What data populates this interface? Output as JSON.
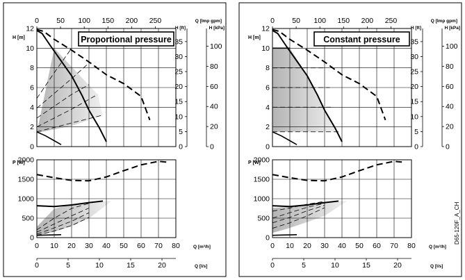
{
  "figure_code": "D65-120F_A_CH",
  "colors": {
    "line": "#000000",
    "grid": "#000000",
    "shade_light": "#f0f0f0",
    "shade_dark": "#b4b4b4",
    "frame": "#000000",
    "background": "#ffffff"
  },
  "chart_data": [
    {
      "type": "line",
      "panel": "Proportional pressure",
      "title": "Proportional pressure",
      "x_axis": {
        "label": "Q [m³/h]",
        "range": [
          0,
          80
        ],
        "ticks": [
          "0",
          "10",
          "20",
          "30",
          "40",
          "50",
          "60",
          "70",
          "80"
        ],
        "secondary_label": "Q [l/s]",
        "secondary_range": [
          0,
          22.22
        ],
        "secondary_ticks": [
          "0",
          "5",
          "10",
          "15",
          "20"
        ],
        "top_label": "Q [Imp gpm]",
        "top_range": [
          0,
          293.3
        ],
        "top_ticks": [
          "0",
          "50",
          "100",
          "150",
          "200",
          "250"
        ]
      },
      "head": {
        "ylabel": "H [m]",
        "ylim": [
          0,
          12
        ],
        "ticks": [
          "0",
          "2",
          "4",
          "6",
          "8",
          "10",
          "12"
        ],
        "secondary_label": "H [ft]",
        "secondary_ticks": [
          "0",
          "5",
          "10",
          "15",
          "20",
          "25",
          "30",
          "35"
        ],
        "tertiary_label": "H [kPa]",
        "tertiary_ticks": [
          "0",
          "20",
          "40",
          "60",
          "80",
          "100"
        ],
        "grid": true,
        "series": [
          {
            "style": "dashed-bold",
            "x": [
              0,
              4,
              10,
              20,
              30,
              40,
              50,
              60,
              65
            ],
            "y": [
              11.9,
              11.7,
              10.9,
              9.8,
              8.6,
              7.3,
              6.4,
              5.1,
              2.7
            ]
          },
          {
            "style": "solid-bold",
            "x": [
              0,
              3,
              8,
              14,
              20,
              26,
              30,
              36,
              40
            ],
            "y": [
              11.8,
              11.5,
              10.2,
              8.7,
              7.2,
              5.2,
              3.7,
              1.9,
              0.5
            ]
          },
          {
            "style": "solid",
            "x": [
              0,
              5,
              10,
              14
            ],
            "y": [
              1.5,
              1.1,
              0.6,
              0.2
            ]
          },
          {
            "style": "dashed",
            "x": [
              0,
              10,
              20
            ],
            "y": [
              4.9,
              7.5,
              10.0
            ]
          },
          {
            "style": "dashed",
            "x": [
              0,
              20,
              30
            ],
            "y": [
              3.9,
              6.9,
              8.5
            ]
          },
          {
            "style": "dashed",
            "x": [
              0,
              20,
              30
            ],
            "y": [
              2.9,
              5.3,
              6.3
            ]
          },
          {
            "style": "dashed",
            "x": [
              0,
              20,
              35
            ],
            "y": [
              2.0,
              3.8,
              5.3
            ]
          },
          {
            "style": "dashed",
            "x": [
              0,
              20,
              38
            ],
            "y": [
              1.5,
              2.4,
              3.2
            ]
          }
        ],
        "shaded_region": {
          "x": [
            0,
            10,
            35,
            38,
            30,
            20,
            0
          ],
          "y": [
            1.4,
            10.0,
            5.3,
            3.2,
            2.7,
            2.1,
            1.4
          ]
        }
      },
      "power": {
        "ylabel": "P [W]",
        "ylim": [
          0,
          2000
        ],
        "ticks": [
          "0",
          "500",
          "1000",
          "1500",
          "2000"
        ],
        "grid": true,
        "series": [
          {
            "style": "dashed-bold",
            "x": [
              0,
              10,
              20,
              30,
              40,
              50,
              60,
              70,
              75
            ],
            "y": [
              1620,
              1540,
              1470,
              1460,
              1560,
              1720,
              1870,
              1960,
              1940
            ]
          },
          {
            "style": "solid-bold",
            "x": [
              0,
              10,
              20,
              30,
              38
            ],
            "y": [
              820,
              800,
              840,
              900,
              940
            ]
          },
          {
            "style": "solid",
            "x": [
              0,
              5,
              10,
              14
            ],
            "y": [
              60,
              65,
              70,
              75
            ]
          },
          {
            "style": "dashed",
            "x": [
              0,
              10,
              20,
              30
            ],
            "y": [
              200,
              500,
              750,
              880
            ]
          },
          {
            "style": "dashed",
            "x": [
              0,
              10,
              20,
              30
            ],
            "y": [
              140,
              350,
              560,
              760
            ]
          },
          {
            "style": "dashed",
            "x": [
              0,
              10,
              20,
              30
            ],
            "y": [
              90,
              250,
              420,
              640
            ]
          },
          {
            "style": "dashed",
            "x": [
              0,
              10,
              20,
              30
            ],
            "y": [
              60,
              170,
              310,
              520
            ]
          }
        ],
        "shaded_region": {
          "x": [
            0,
            10,
            20,
            30,
            40,
            43,
            30,
            20,
            10,
            0
          ],
          "y": [
            280,
            740,
            850,
            920,
            940,
            940,
            490,
            300,
            150,
            60
          ]
        }
      }
    },
    {
      "type": "line",
      "panel": "Constant pressure",
      "title": "Constant pressure",
      "x_axis": {
        "label": "Q [m³/h]",
        "range": [
          0,
          80
        ],
        "ticks": [
          "0",
          "10",
          "20",
          "30",
          "40",
          "50",
          "60",
          "70",
          "80"
        ],
        "secondary_label": "Q [l/s]",
        "secondary_range": [
          0,
          22.22
        ],
        "secondary_ticks": [
          "0",
          "5",
          "10",
          "15",
          "20"
        ],
        "top_label": "Q [Imp gpm]",
        "top_range": [
          0,
          293.3
        ],
        "top_ticks": [
          "0",
          "50",
          "100",
          "150",
          "200",
          "250"
        ]
      },
      "head": {
        "ylabel": "H [m]",
        "ylim": [
          0,
          12
        ],
        "ticks": [
          "0",
          "2",
          "4",
          "6",
          "8",
          "10",
          "12"
        ],
        "secondary_label": "H [ft]",
        "secondary_ticks": [
          "0",
          "5",
          "10",
          "15",
          "20",
          "25",
          "30",
          "35"
        ],
        "tertiary_label": "H [kPa]",
        "tertiary_ticks": [
          "0",
          "20",
          "40",
          "60",
          "80",
          "100"
        ],
        "grid": true,
        "series": [
          {
            "style": "dashed-bold",
            "x": [
              0,
              4,
              10,
              20,
              30,
              40,
              50,
              60,
              65
            ],
            "y": [
              11.9,
              11.7,
              10.9,
              9.8,
              8.6,
              7.3,
              6.4,
              5.1,
              2.7
            ]
          },
          {
            "style": "solid-bold",
            "x": [
              0,
              3,
              8,
              14,
              20,
              26,
              30,
              36,
              40
            ],
            "y": [
              11.8,
              11.5,
              10.2,
              8.7,
              7.2,
              5.2,
              3.7,
              1.9,
              0.5
            ]
          },
          {
            "style": "solid",
            "x": [
              0,
              5,
              10,
              14
            ],
            "y": [
              1.5,
              1.1,
              0.6,
              0.2
            ]
          },
          {
            "style": "solid",
            "x": [
              0,
              10
            ],
            "y": [
              10.0,
              10.0
            ]
          },
          {
            "style": "dashed",
            "x": [
              0,
              30
            ],
            "y": [
              8.0,
              8.0
            ]
          },
          {
            "style": "dashed",
            "x": [
              0,
              33
            ],
            "y": [
              6.0,
              6.0
            ]
          },
          {
            "style": "dashed",
            "x": [
              0,
              35
            ],
            "y": [
              4.0,
              4.0
            ]
          },
          {
            "style": "dashed",
            "x": [
              0,
              38
            ],
            "y": [
              1.5,
              1.5
            ]
          }
        ],
        "shaded_region": {
          "x": [
            0,
            10,
            20,
            26,
            30,
            36,
            38,
            0
          ],
          "y": [
            10.0,
            10.0,
            7.2,
            5.2,
            3.7,
            1.9,
            1.5,
            1.5
          ]
        }
      },
      "power": {
        "ylabel": "P [W]",
        "ylim": [
          0,
          2000
        ],
        "ticks": [
          "0",
          "500",
          "1000",
          "1500",
          "2000"
        ],
        "grid": true,
        "series": [
          {
            "style": "dashed-bold",
            "x": [
              0,
              10,
              20,
              30,
              40,
              50,
              60,
              70,
              75
            ],
            "y": [
              1620,
              1540,
              1470,
              1460,
              1560,
              1720,
              1870,
              1960,
              1940
            ]
          },
          {
            "style": "solid-bold",
            "x": [
              0,
              10,
              20,
              30,
              38
            ],
            "y": [
              820,
              800,
              840,
              900,
              940
            ]
          },
          {
            "style": "solid",
            "x": [
              0,
              5,
              10,
              14
            ],
            "y": [
              60,
              65,
              70,
              75
            ]
          },
          {
            "style": "dashed",
            "x": [
              0,
              10,
              20,
              30
            ],
            "y": [
              680,
              760,
              860,
              930
            ]
          },
          {
            "style": "dashed",
            "x": [
              0,
              10,
              20,
              30
            ],
            "y": [
              500,
              640,
              780,
              880
            ]
          },
          {
            "style": "dashed",
            "x": [
              0,
              10,
              20,
              30
            ],
            "y": [
              380,
              520,
              690,
              830
            ]
          },
          {
            "style": "dashed",
            "x": [
              0,
              10,
              20,
              30
            ],
            "y": [
              240,
              380,
              560,
              770
            ]
          }
        ],
        "shaded_region": {
          "x": [
            0,
            10,
            20,
            30,
            40,
            43,
            30,
            20,
            10,
            0
          ],
          "y": [
            760,
            790,
            860,
            920,
            940,
            940,
            560,
            400,
            250,
            120
          ]
        }
      }
    }
  ]
}
